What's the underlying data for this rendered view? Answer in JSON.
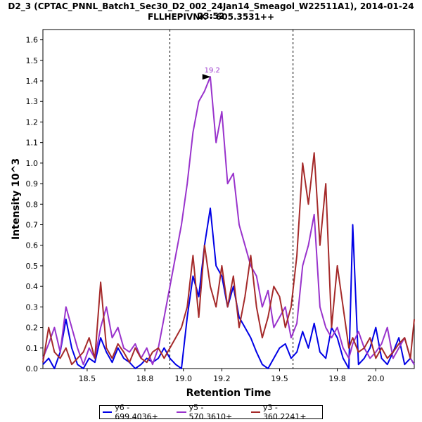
{
  "title_line1": "D2_3 (CPTAC_PNNL_Batch1_Sec30_D2_002_24Jan14_Smeagol_W22511A1), 2014-01-24 23:52",
  "title_line2": "FLLHEPIVNK - 605.3531++",
  "chart_data": {
    "type": "line",
    "xlabel": "Retention Time",
    "ylabel": "Intensity 10^3",
    "xlim": [
      18.27,
      20.2
    ],
    "ylim": [
      0,
      1.65
    ],
    "x_ticks": [
      18.5,
      18.8,
      19.0,
      19.2,
      19.5,
      19.8,
      20.0
    ],
    "y_ticks": [
      0.0,
      0.1,
      0.2,
      0.3,
      0.4,
      0.5,
      0.6,
      0.7,
      0.8,
      0.9,
      1.0,
      1.1,
      1.2,
      1.3,
      1.4,
      1.5,
      1.6
    ],
    "vlines": [
      18.93,
      19.57
    ],
    "annotation": {
      "label": "19.2",
      "x": 19.15,
      "y": 1.42,
      "color": "#9933CC"
    },
    "series": [
      {
        "name": "y6 - 699.4036+",
        "color": "#0000E6",
        "x": [
          18.27,
          18.3,
          18.33,
          18.36,
          18.39,
          18.42,
          18.45,
          18.48,
          18.51,
          18.54,
          18.57,
          18.6,
          18.63,
          18.66,
          18.69,
          18.72,
          18.75,
          18.78,
          18.81,
          18.84,
          18.87,
          18.9,
          18.93,
          18.96,
          18.99,
          19.02,
          19.05,
          19.08,
          19.11,
          19.14,
          19.17,
          19.2,
          19.23,
          19.26,
          19.29,
          19.32,
          19.35,
          19.38,
          19.41,
          19.44,
          19.47,
          19.5,
          19.53,
          19.56,
          19.59,
          19.62,
          19.65,
          19.68,
          19.71,
          19.74,
          19.77,
          19.8,
          19.83,
          19.86,
          19.88,
          19.91,
          19.94,
          19.97,
          20.0,
          20.03,
          20.06,
          20.09,
          20.12,
          20.15,
          20.18,
          20.2
        ],
        "values": [
          0.02,
          0.05,
          0.0,
          0.08,
          0.24,
          0.1,
          0.02,
          0.0,
          0.05,
          0.03,
          0.15,
          0.08,
          0.03,
          0.1,
          0.05,
          0.03,
          0.0,
          0.02,
          0.05,
          0.03,
          0.05,
          0.1,
          0.05,
          0.02,
          0.0,
          0.25,
          0.45,
          0.35,
          0.6,
          0.78,
          0.5,
          0.45,
          0.3,
          0.4,
          0.25,
          0.2,
          0.15,
          0.08,
          0.02,
          0.0,
          0.05,
          0.1,
          0.12,
          0.05,
          0.08,
          0.18,
          0.1,
          0.22,
          0.08,
          0.05,
          0.2,
          0.15,
          0.05,
          0.0,
          0.7,
          0.02,
          0.05,
          0.1,
          0.2,
          0.05,
          0.02,
          0.08,
          0.15,
          0.02,
          0.05,
          0.02
        ]
      },
      {
        "name": "y5 - 570.3610+",
        "color": "#9933CC",
        "x": [
          18.27,
          18.3,
          18.33,
          18.36,
          18.39,
          18.42,
          18.45,
          18.48,
          18.51,
          18.54,
          18.57,
          18.6,
          18.63,
          18.66,
          18.69,
          18.72,
          18.75,
          18.78,
          18.81,
          18.84,
          18.87,
          18.9,
          18.93,
          18.96,
          18.99,
          19.02,
          19.05,
          19.08,
          19.11,
          19.14,
          19.17,
          19.2,
          19.23,
          19.26,
          19.29,
          19.32,
          19.35,
          19.38,
          19.41,
          19.44,
          19.47,
          19.5,
          19.53,
          19.56,
          19.59,
          19.62,
          19.65,
          19.68,
          19.71,
          19.74,
          19.77,
          19.8,
          19.83,
          19.86,
          19.88,
          19.91,
          19.94,
          19.97,
          20.0,
          20.03,
          20.06,
          20.09,
          20.12,
          20.15,
          20.18,
          20.2
        ],
        "values": [
          0.05,
          0.12,
          0.2,
          0.08,
          0.3,
          0.2,
          0.1,
          0.02,
          0.1,
          0.05,
          0.2,
          0.3,
          0.15,
          0.2,
          0.1,
          0.08,
          0.12,
          0.05,
          0.1,
          0.02,
          0.1,
          0.25,
          0.4,
          0.55,
          0.7,
          0.9,
          1.15,
          1.3,
          1.35,
          1.42,
          1.1,
          1.25,
          0.9,
          0.95,
          0.7,
          0.6,
          0.5,
          0.45,
          0.3,
          0.38,
          0.2,
          0.25,
          0.3,
          0.15,
          0.22,
          0.5,
          0.6,
          0.75,
          0.3,
          0.2,
          0.15,
          0.2,
          0.1,
          0.05,
          0.12,
          0.18,
          0.1,
          0.05,
          0.08,
          0.12,
          0.2,
          0.05,
          0.1,
          0.15,
          0.05,
          0.02
        ]
      },
      {
        "name": "y3 - 360.2241+",
        "color": "#A52A2A",
        "x": [
          18.27,
          18.3,
          18.33,
          18.36,
          18.39,
          18.42,
          18.45,
          18.48,
          18.51,
          18.54,
          18.57,
          18.6,
          18.63,
          18.66,
          18.69,
          18.72,
          18.75,
          18.78,
          18.81,
          18.84,
          18.87,
          18.9,
          18.93,
          18.96,
          18.99,
          19.02,
          19.05,
          19.08,
          19.11,
          19.14,
          19.17,
          19.2,
          19.23,
          19.26,
          19.29,
          19.32,
          19.35,
          19.38,
          19.41,
          19.44,
          19.47,
          19.5,
          19.53,
          19.56,
          19.59,
          19.62,
          19.65,
          19.68,
          19.71,
          19.74,
          19.77,
          19.8,
          19.83,
          19.86,
          19.88,
          19.91,
          19.94,
          19.97,
          20.0,
          20.03,
          20.06,
          20.09,
          20.12,
          20.15,
          20.18,
          20.2
        ],
        "values": [
          0.03,
          0.2,
          0.08,
          0.05,
          0.1,
          0.02,
          0.05,
          0.08,
          0.15,
          0.05,
          0.42,
          0.1,
          0.05,
          0.12,
          0.08,
          0.03,
          0.1,
          0.05,
          0.03,
          0.08,
          0.1,
          0.05,
          0.1,
          0.15,
          0.2,
          0.3,
          0.55,
          0.25,
          0.6,
          0.4,
          0.3,
          0.5,
          0.3,
          0.45,
          0.2,
          0.35,
          0.55,
          0.3,
          0.15,
          0.25,
          0.4,
          0.35,
          0.2,
          0.3,
          0.55,
          1.0,
          0.8,
          1.05,
          0.6,
          0.9,
          0.2,
          0.5,
          0.3,
          0.1,
          0.15,
          0.08,
          0.1,
          0.15,
          0.05,
          0.1,
          0.05,
          0.08,
          0.12,
          0.15,
          0.05,
          0.24
        ]
      }
    ]
  }
}
